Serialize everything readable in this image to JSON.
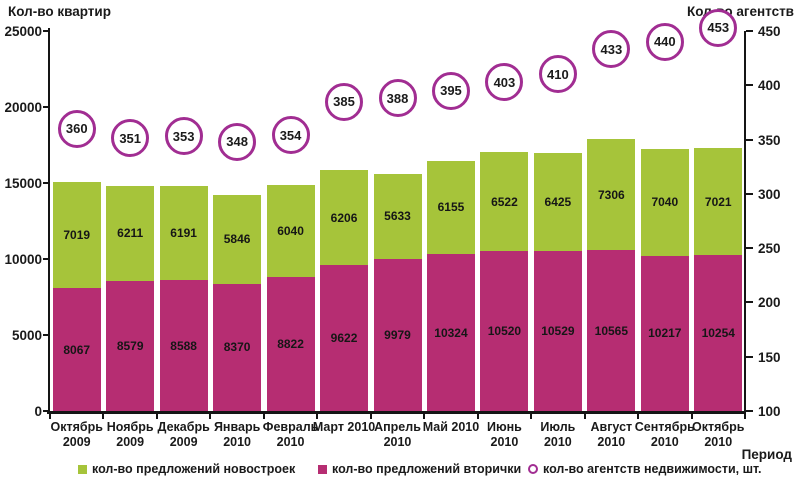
{
  "chart_data": {
    "type": "bar",
    "subtype": "stacked-with-circle-overlay",
    "title": "",
    "left_axis": {
      "title": "Кол-во квартир",
      "min": 0,
      "max": 25000,
      "ticks": [
        0,
        5000,
        10000,
        15000,
        20000,
        25000
      ]
    },
    "right_axis": {
      "title": "Кол-во агентств",
      "min": 100,
      "max": 450,
      "ticks": [
        100,
        150,
        200,
        250,
        300,
        350,
        400,
        450
      ]
    },
    "x_axis_title": "Период",
    "grid": false,
    "legend_position": "bottom",
    "categories": [
      [
        "Октябрь",
        "2009"
      ],
      [
        "Ноябрь",
        "2009"
      ],
      [
        "Декабрь",
        "2009"
      ],
      [
        "Январь",
        "2010"
      ],
      [
        "Февраль",
        "2010"
      ],
      [
        "Март 2010",
        ""
      ],
      [
        "Апрель",
        "2010"
      ],
      [
        "Май 2010",
        ""
      ],
      [
        "Июнь",
        "2010"
      ],
      [
        "Июль",
        "2010"
      ],
      [
        "Август",
        "2010"
      ],
      [
        "Сентябрь",
        "2010"
      ],
      [
        "Октябрь",
        "2010"
      ]
    ],
    "series": [
      {
        "key": "novostroiki",
        "type": "bar",
        "stack_order": "top",
        "name": "кол-во предложений новостроек",
        "color": "#a6c43a",
        "values": [
          7019,
          6211,
          6191,
          5846,
          6040,
          6206,
          5633,
          6155,
          6522,
          6425,
          7306,
          7040,
          7021
        ]
      },
      {
        "key": "vtorichka",
        "type": "bar",
        "stack_order": "bottom",
        "name": "кол-во предложений вторички",
        "color": "#b62d72",
        "values": [
          8067,
          8579,
          8588,
          8370,
          8822,
          9622,
          9979,
          10324,
          10520,
          10529,
          10565,
          10217,
          10254
        ]
      },
      {
        "key": "agents",
        "type": "circle",
        "axis": "right",
        "name": "кол-во агентств недвижимости, шт.",
        "color": "#a12d92",
        "values": [
          360,
          351,
          353,
          348,
          354,
          385,
          388,
          395,
          403,
          410,
          433,
          440,
          453
        ]
      }
    ]
  },
  "legend": {
    "items": [
      {
        "label": "кол-во предложений новостроек"
      },
      {
        "label": "кол-во предложений вторички"
      },
      {
        "label": "кол-во агентств недвижимости, шт."
      }
    ]
  }
}
